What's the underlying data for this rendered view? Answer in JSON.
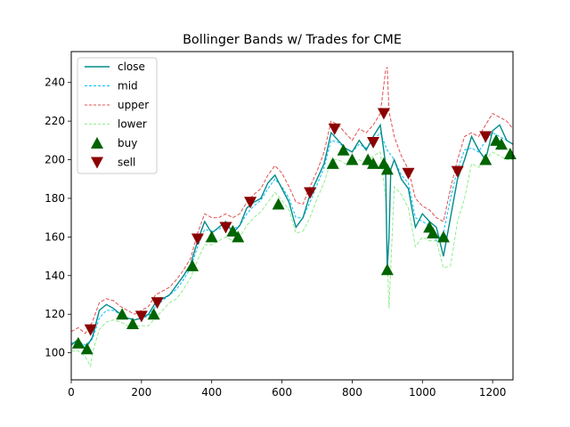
{
  "chart_data": {
    "type": "line",
    "title": "Bollinger Bands w/ Trades for CME",
    "xlabel": "",
    "ylabel": "",
    "xlim": [
      0,
      1258
    ],
    "ylim": [
      86,
      256
    ],
    "x_ticks": [
      0,
      200,
      400,
      600,
      800,
      1000,
      1200
    ],
    "y_ticks": [
      100,
      120,
      140,
      160,
      180,
      200,
      220,
      240
    ],
    "grid": false,
    "legend": {
      "placement": "top-left",
      "entries": [
        {
          "label": "close",
          "style": "solid-line",
          "color": "#008b8b"
        },
        {
          "label": "mid",
          "style": "dashed-line",
          "color": "#00bfff"
        },
        {
          "label": "upper",
          "style": "dashed-line",
          "color": "#e05050"
        },
        {
          "label": "lower",
          "style": "dashed-line",
          "color": "#90ee90"
        },
        {
          "label": "buy",
          "style": "triangle-up",
          "color": "#006400"
        },
        {
          "label": "sell",
          "style": "triangle-down",
          "color": "#8b0000"
        }
      ]
    },
    "colors": {
      "close": "#008b8b",
      "mid": "#00bfff",
      "upper": "#e05050",
      "lower": "#90ee90",
      "buy": "#006400",
      "sell": "#8b0000"
    },
    "series": [
      {
        "name": "close",
        "x": [
          0,
          20,
          40,
          60,
          80,
          100,
          120,
          140,
          160,
          180,
          200,
          220,
          240,
          260,
          280,
          300,
          320,
          340,
          360,
          380,
          400,
          420,
          440,
          460,
          480,
          500,
          520,
          540,
          560,
          580,
          600,
          620,
          640,
          660,
          680,
          700,
          720,
          740,
          760,
          780,
          800,
          820,
          840,
          860,
          880,
          895,
          900,
          905,
          910,
          920,
          940,
          960,
          980,
          1000,
          1020,
          1040,
          1060,
          1080,
          1100,
          1120,
          1140,
          1160,
          1180,
          1200,
          1220,
          1240,
          1258
        ],
        "y": [
          104,
          107,
          102,
          108,
          122,
          125,
          123,
          120,
          118,
          117,
          118,
          120,
          126,
          128,
          130,
          135,
          140,
          146,
          158,
          168,
          162,
          165,
          168,
          162,
          166,
          175,
          178,
          180,
          188,
          192,
          185,
          178,
          165,
          170,
          182,
          190,
          198,
          214,
          210,
          206,
          204,
          210,
          205,
          212,
          218,
          198,
          143,
          160,
          195,
          200,
          190,
          185,
          165,
          172,
          168,
          165,
          150,
          170,
          190,
          200,
          212,
          205,
          200,
          215,
          218,
          210,
          208
        ]
      },
      {
        "name": "mid",
        "x": [
          0,
          20,
          40,
          60,
          80,
          100,
          120,
          140,
          160,
          180,
          200,
          220,
          240,
          260,
          280,
          300,
          320,
          340,
          360,
          380,
          400,
          420,
          440,
          460,
          480,
          500,
          520,
          540,
          560,
          580,
          600,
          620,
          640,
          660,
          680,
          700,
          720,
          740,
          760,
          780,
          800,
          820,
          840,
          860,
          880,
          900,
          920,
          940,
          960,
          980,
          1000,
          1020,
          1040,
          1060,
          1080,
          1100,
          1120,
          1140,
          1160,
          1180,
          1200,
          1220,
          1240,
          1258
        ],
        "y": [
          105,
          106,
          104,
          107,
          118,
          122,
          122,
          120,
          118,
          117,
          118,
          119,
          124,
          127,
          130,
          133,
          138,
          144,
          155,
          164,
          163,
          164,
          166,
          164,
          166,
          172,
          176,
          179,
          185,
          190,
          186,
          180,
          170,
          170,
          178,
          187,
          196,
          210,
          209,
          206,
          204,
          208,
          206,
          210,
          214,
          205,
          200,
          192,
          188,
          170,
          168,
          166,
          158,
          162,
          180,
          195,
          205,
          206,
          204,
          210,
          214,
          212,
          210,
          208
        ]
      },
      {
        "name": "upper",
        "x": [
          0,
          20,
          40,
          60,
          80,
          100,
          120,
          140,
          160,
          180,
          200,
          220,
          240,
          260,
          280,
          300,
          320,
          340,
          360,
          380,
          400,
          420,
          440,
          460,
          480,
          500,
          520,
          540,
          560,
          580,
          600,
          620,
          640,
          660,
          680,
          700,
          720,
          740,
          760,
          780,
          800,
          820,
          840,
          860,
          880,
          895,
          900,
          905,
          920,
          940,
          960,
          980,
          1000,
          1020,
          1040,
          1060,
          1080,
          1100,
          1120,
          1140,
          1160,
          1180,
          1200,
          1220,
          1240,
          1258
        ],
        "y": [
          111,
          113,
          110,
          116,
          126,
          128,
          127,
          124,
          122,
          120,
          122,
          124,
          130,
          132,
          134,
          138,
          143,
          149,
          162,
          172,
          170,
          170,
          172,
          170,
          172,
          178,
          182,
          185,
          192,
          197,
          193,
          186,
          178,
          177,
          186,
          194,
          204,
          220,
          218,
          214,
          210,
          216,
          214,
          218,
          224,
          246,
          248,
          225,
          212,
          202,
          195,
          180,
          176,
          174,
          170,
          168,
          185,
          200,
          212,
          214,
          212,
          218,
          224,
          222,
          220,
          216
        ]
      },
      {
        "name": "lower",
        "x": [
          0,
          20,
          40,
          55,
          60,
          80,
          100,
          120,
          140,
          160,
          180,
          200,
          220,
          240,
          260,
          280,
          300,
          320,
          340,
          360,
          380,
          400,
          420,
          440,
          460,
          480,
          500,
          520,
          540,
          560,
          580,
          600,
          620,
          640,
          660,
          680,
          700,
          720,
          740,
          760,
          780,
          800,
          820,
          840,
          860,
          880,
          895,
          900,
          905,
          920,
          940,
          960,
          980,
          1000,
          1020,
          1040,
          1060,
          1080,
          1100,
          1120,
          1140,
          1160,
          1180,
          1200,
          1220,
          1240,
          1258
        ],
        "y": [
          101,
          101,
          98,
          93,
          100,
          112,
          116,
          117,
          116,
          114,
          114,
          114,
          114,
          118,
          122,
          126,
          128,
          133,
          139,
          148,
          156,
          156,
          158,
          160,
          158,
          160,
          166,
          170,
          173,
          178,
          183,
          179,
          174,
          162,
          163,
          170,
          180,
          188,
          200,
          200,
          198,
          198,
          200,
          198,
          202,
          204,
          180,
          150,
          123,
          186,
          182,
          175,
          155,
          160,
          158,
          158,
          144,
          145,
          168,
          180,
          198,
          196,
          200,
          204,
          202,
          200,
          200
        ]
      }
    ],
    "buy": [
      {
        "x": 20,
        "y": 105
      },
      {
        "x": 45,
        "y": 102
      },
      {
        "x": 145,
        "y": 120
      },
      {
        "x": 175,
        "y": 115
      },
      {
        "x": 235,
        "y": 120
      },
      {
        "x": 345,
        "y": 145
      },
      {
        "x": 400,
        "y": 160
      },
      {
        "x": 460,
        "y": 163
      },
      {
        "x": 475,
        "y": 160
      },
      {
        "x": 590,
        "y": 177
      },
      {
        "x": 745,
        "y": 198
      },
      {
        "x": 775,
        "y": 205
      },
      {
        "x": 800,
        "y": 200
      },
      {
        "x": 845,
        "y": 200
      },
      {
        "x": 860,
        "y": 198
      },
      {
        "x": 890,
        "y": 198
      },
      {
        "x": 900,
        "y": 195
      },
      {
        "x": 900,
        "y": 143
      },
      {
        "x": 1020,
        "y": 165
      },
      {
        "x": 1030,
        "y": 162
      },
      {
        "x": 1060,
        "y": 160
      },
      {
        "x": 1180,
        "y": 200
      },
      {
        "x": 1210,
        "y": 210
      },
      {
        "x": 1225,
        "y": 208
      },
      {
        "x": 1250,
        "y": 203
      }
    ],
    "sell": [
      {
        "x": 55,
        "y": 112
      },
      {
        "x": 200,
        "y": 119
      },
      {
        "x": 245,
        "y": 126
      },
      {
        "x": 360,
        "y": 159
      },
      {
        "x": 440,
        "y": 165
      },
      {
        "x": 510,
        "y": 178
      },
      {
        "x": 680,
        "y": 183
      },
      {
        "x": 750,
        "y": 216
      },
      {
        "x": 860,
        "y": 209
      },
      {
        "x": 890,
        "y": 224
      },
      {
        "x": 960,
        "y": 193
      },
      {
        "x": 1100,
        "y": 194
      },
      {
        "x": 1180,
        "y": 212
      }
    ]
  }
}
